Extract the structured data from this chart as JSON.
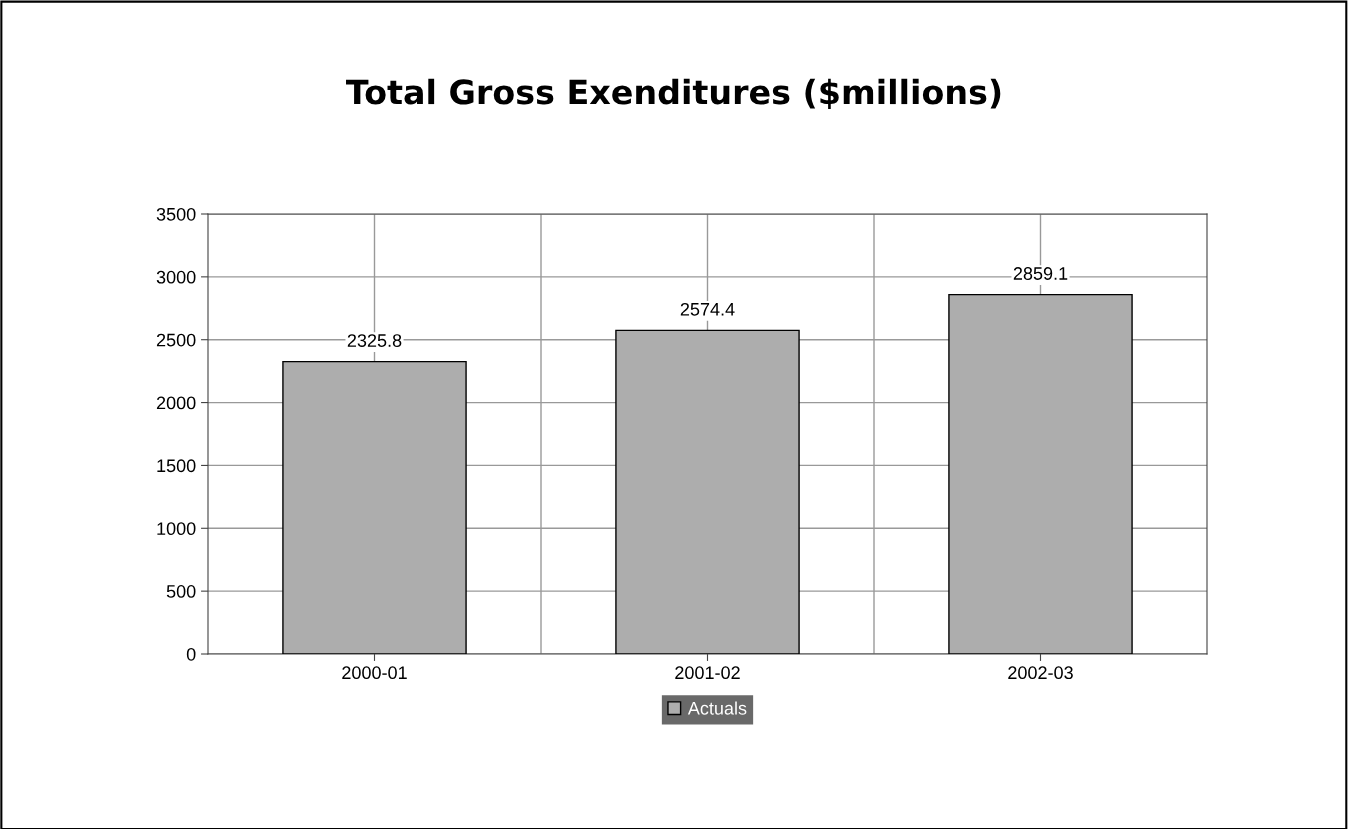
{
  "chart_data": {
    "type": "bar",
    "title": "Total Gross Exenditures ($millions)",
    "categories": [
      "2000-01",
      "2001-02",
      "2002-03"
    ],
    "series": [
      {
        "name": "Actuals",
        "color": "#adadad",
        "values": [
          2325.8,
          2574.4,
          2859.1
        ]
      }
    ],
    "ylim": [
      0,
      3500
    ],
    "yticks": [
      0,
      500,
      1000,
      1500,
      2000,
      2500,
      3000,
      3500
    ],
    "grid": true,
    "legend": "bottom",
    "data_labels": true
  }
}
